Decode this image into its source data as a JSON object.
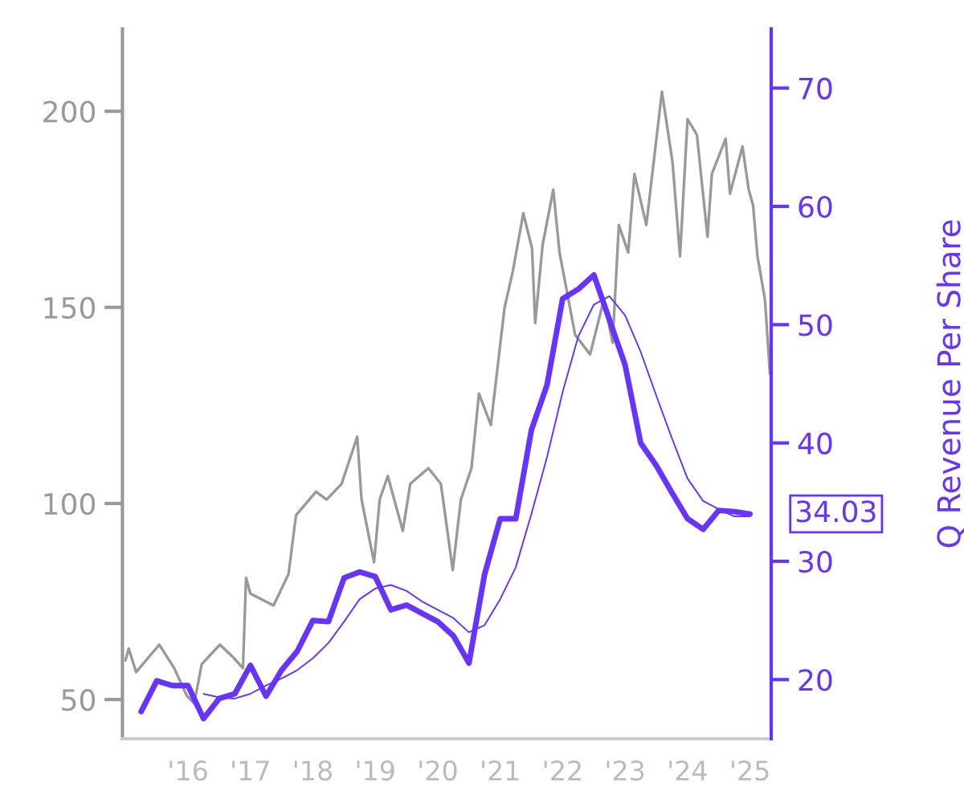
{
  "chart_data": {
    "type": "line",
    "y2label": "Q Revenue Per Share",
    "xlim": [
      2014.95,
      2025.34
    ],
    "ylim": [
      40,
      221
    ],
    "y2lim": [
      15,
      75
    ],
    "xticks": [
      {
        "value": 2016,
        "label": "'16"
      },
      {
        "value": 2017,
        "label": "'17"
      },
      {
        "value": 2018,
        "label": "'18"
      },
      {
        "value": 2019,
        "label": "'19"
      },
      {
        "value": 2020,
        "label": "'20"
      },
      {
        "value": 2021,
        "label": "'21"
      },
      {
        "value": 2022,
        "label": "'22"
      },
      {
        "value": 2023,
        "label": "'23"
      },
      {
        "value": 2024,
        "label": "'24"
      },
      {
        "value": 2025,
        "label": "'25"
      }
    ],
    "yticks": [
      50,
      100,
      150,
      200
    ],
    "y2ticks": [
      20,
      30,
      40,
      50,
      60,
      70
    ],
    "grid": false,
    "legend": false,
    "marker": "none",
    "line_style": "solid",
    "annotations": [
      "34.03"
    ],
    "series": [
      {
        "color": "#999999",
        "axis": "y",
        "x": [
          2015.0,
          2015.05,
          2015.17,
          2015.54,
          2015.78,
          2015.98,
          2016.1,
          2016.22,
          2016.51,
          2016.71,
          2016.88,
          2016.93,
          2017.0,
          2017.37,
          2017.61,
          2017.73,
          2018.05,
          2018.22,
          2018.46,
          2018.71,
          2018.78,
          2018.98,
          2019.07,
          2019.2,
          2019.44,
          2019.56,
          2019.85,
          2020.05,
          2020.24,
          2020.37,
          2020.54,
          2020.66,
          2020.85,
          2021.07,
          2021.2,
          2021.37,
          2021.51,
          2021.56,
          2021.68,
          2021.85,
          2021.95,
          2022.2,
          2022.44,
          2022.66,
          2022.8,
          2022.9,
          2023.05,
          2023.15,
          2023.34,
          2023.59,
          2023.76,
          2023.88,
          2024.0,
          2024.15,
          2024.32,
          2024.39,
          2024.61,
          2024.68,
          2024.88,
          2024.98,
          2025.05,
          2025.12,
          2025.24,
          2025.32
        ],
        "values": [
          60,
          63,
          57,
          64,
          58,
          51,
          49,
          59,
          64,
          61,
          58,
          81,
          77,
          74,
          82,
          97,
          103,
          101,
          105,
          117,
          101,
          85,
          101,
          107,
          93,
          105,
          109,
          105,
          83,
          101,
          109,
          128,
          120,
          150,
          159,
          174,
          165,
          146,
          166,
          180,
          164,
          143,
          138,
          152,
          141,
          171,
          164,
          184,
          171,
          205,
          187,
          163,
          198,
          194,
          168,
          184,
          193,
          179,
          191,
          180,
          176,
          163,
          152,
          133
        ]
      },
      {
        "color": "#6633ff",
        "axis": "y2",
        "x": [
          2015.25,
          2015.5,
          2015.75,
          2016.0,
          2016.25,
          2016.5,
          2016.75,
          2017.0,
          2017.25,
          2017.5,
          2017.75,
          2018.0,
          2018.25,
          2018.5,
          2018.75,
          2019.0,
          2019.25,
          2019.5,
          2019.75,
          2020.0,
          2020.25,
          2020.5,
          2020.75,
          2021.0,
          2021.25,
          2021.5,
          2021.75,
          2022.0,
          2022.25,
          2022.5,
          2022.75,
          2023.0,
          2023.25,
          2023.5,
          2023.75,
          2024.0,
          2024.25,
          2024.5,
          2024.75,
          2025.0
        ],
        "values": [
          17.3,
          19.9,
          19.5,
          19.5,
          16.7,
          18.4,
          18.8,
          21.2,
          18.6,
          20.8,
          22.4,
          25.0,
          24.9,
          28.6,
          29.1,
          28.7,
          25.9,
          26.3,
          25.6,
          24.9,
          23.7,
          21.4,
          28.9,
          33.6,
          33.6,
          41.1,
          44.9,
          52.2,
          53.0,
          54.2,
          50.4,
          46.6,
          40.0,
          38.1,
          35.8,
          33.6,
          32.7,
          34.3,
          34.2,
          34.0
        ]
      },
      {
        "color": "#6633ff",
        "axis": "y2",
        "x": [
          2016.25,
          2016.5,
          2016.75,
          2017.0,
          2017.25,
          2017.5,
          2017.75,
          2018.0,
          2018.25,
          2018.5,
          2018.75,
          2019.0,
          2019.25,
          2019.5,
          2019.75,
          2020.0,
          2020.25,
          2020.5,
          2020.75,
          2021.0,
          2021.25,
          2021.5,
          2021.75,
          2022.0,
          2022.25,
          2022.5,
          2022.75,
          2023.0,
          2023.25,
          2023.5,
          2023.75,
          2024.0,
          2024.25,
          2024.5,
          2024.75,
          2025.0
        ],
        "values": [
          18.8,
          18.5,
          18.4,
          18.8,
          19.5,
          20.1,
          20.8,
          21.8,
          23.1,
          24.9,
          26.8,
          27.7,
          28.0,
          27.5,
          26.6,
          25.9,
          25.2,
          24.0,
          24.6,
          26.8,
          29.5,
          34.0,
          38.8,
          44.3,
          49.0,
          51.7,
          52.4,
          50.8,
          47.7,
          44.0,
          40.4,
          37.0,
          35.1,
          34.4,
          33.8,
          33.8
        ]
      }
    ]
  }
}
